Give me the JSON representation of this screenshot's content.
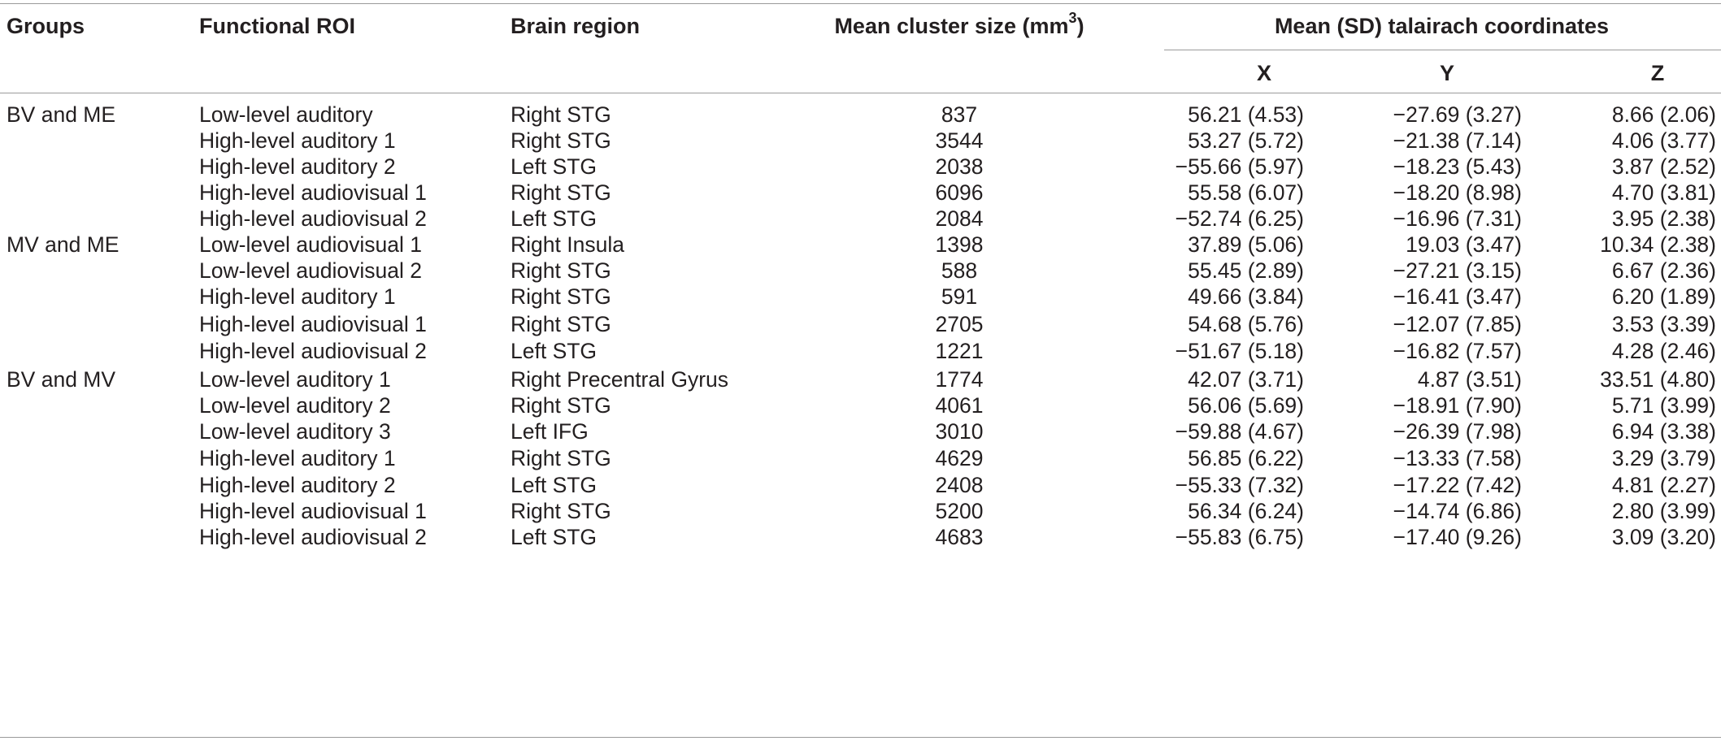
{
  "headers": {
    "groups": "Groups",
    "roi": "Functional ROI",
    "region": "Brain region",
    "size_main": "Mean cluster size (mm",
    "size_sup": "3",
    "size_close": ")",
    "coords": "Mean (SD) talairach coordinates",
    "x": "X",
    "y": "Y",
    "z": "Z"
  },
  "rows": [
    {
      "group": "BV and ME",
      "roi": "Low-level auditory",
      "region": "Right STG",
      "size": "837",
      "x": "56.21 (4.53)",
      "y": "−27.69 (3.27)",
      "z": "8.66 (2.06)"
    },
    {
      "group": "",
      "roi": "High-level auditory 1",
      "region": "Right STG",
      "size": "3544",
      "x": "53.27 (5.72)",
      "y": "−21.38 (7.14)",
      "z": "4.06 (3.77)"
    },
    {
      "group": "",
      "roi": "High-level auditory 2",
      "region": "Left STG",
      "size": "2038",
      "x": "−55.66 (5.97)",
      "y": "−18.23 (5.43)",
      "z": "3.87 (2.52)"
    },
    {
      "group": "",
      "roi": "High-level audiovisual 1",
      "region": "Right STG",
      "size": "6096",
      "x": "55.58 (6.07)",
      "y": "−18.20 (8.98)",
      "z": "4.70 (3.81)"
    },
    {
      "group": "",
      "roi": "High-level audiovisual 2",
      "region": "Left STG",
      "size": "2084",
      "x": "−52.74 (6.25)",
      "y": "−16.96 (7.31)",
      "z": "3.95 (2.38)"
    },
    {
      "group": "MV and ME",
      "roi": "Low-level audiovisual 1",
      "region": "Right Insula",
      "size": "1398",
      "x": "37.89 (5.06)",
      "y": "19.03 (3.47)",
      "z": "10.34 (2.38)"
    },
    {
      "group": "",
      "roi": "Low-level audiovisual 2",
      "region": "Right STG",
      "size": "588",
      "x": "55.45 (2.89)",
      "y": "−27.21 (3.15)",
      "z": "6.67 (2.36)"
    },
    {
      "group": "",
      "roi": "High-level auditory 1",
      "region": "Right STG",
      "size": "591",
      "x": "49.66 (3.84)",
      "y": "−16.41 (3.47)",
      "z": "6.20 (1.89)"
    },
    {
      "group": "",
      "roi": "High-level audiovisual 1",
      "region": "Right STG",
      "size": "2705",
      "x": "54.68 (5.76)",
      "y": "−12.07 (7.85)",
      "z": "3.53 (3.39)"
    },
    {
      "group": "",
      "roi": "High-level audiovisual 2",
      "region": "Left STG",
      "size": "1221",
      "x": "−51.67 (5.18)",
      "y": "−16.82 (7.57)",
      "z": "4.28 (2.46)"
    },
    {
      "group": "BV and MV",
      "roi": "Low-level auditory 1",
      "region": "Right Precentral Gyrus",
      "size": "1774",
      "x": "42.07 (3.71)",
      "y": "4.87 (3.51)",
      "z": "33.51 (4.80)"
    },
    {
      "group": "",
      "roi": "Low-level auditory 2",
      "region": "Right STG",
      "size": "4061",
      "x": "56.06 (5.69)",
      "y": "−18.91 (7.90)",
      "z": "5.71 (3.99)"
    },
    {
      "group": "",
      "roi": "Low-level auditory 3",
      "region": "Left IFG",
      "size": "3010",
      "x": "−59.88 (4.67)",
      "y": "−26.39 (7.98)",
      "z": "6.94 (3.38)"
    },
    {
      "group": "",
      "roi": "High-level auditory 1",
      "region": "Right STG",
      "size": "4629",
      "x": "56.85 (6.22)",
      "y": "−13.33 (7.58)",
      "z": "3.29 (3.79)"
    },
    {
      "group": "",
      "roi": "High-level auditory 2",
      "region": "Left STG",
      "size": "2408",
      "x": "−55.33 (7.32)",
      "y": "−17.22 (7.42)",
      "z": "4.81 (2.27)"
    },
    {
      "group": "",
      "roi": "High-level audiovisual 1",
      "region": "Right STG",
      "size": "5200",
      "x": "56.34 (6.24)",
      "y": "−14.74 (6.86)",
      "z": "2.80 (3.99)"
    },
    {
      "group": "",
      "roi": "High-level audiovisual 2",
      "region": "Left STG",
      "size": "4683",
      "x": "−55.83 (6.75)",
      "y": "−17.40 (9.26)",
      "z": "3.09 (3.20)"
    }
  ]
}
